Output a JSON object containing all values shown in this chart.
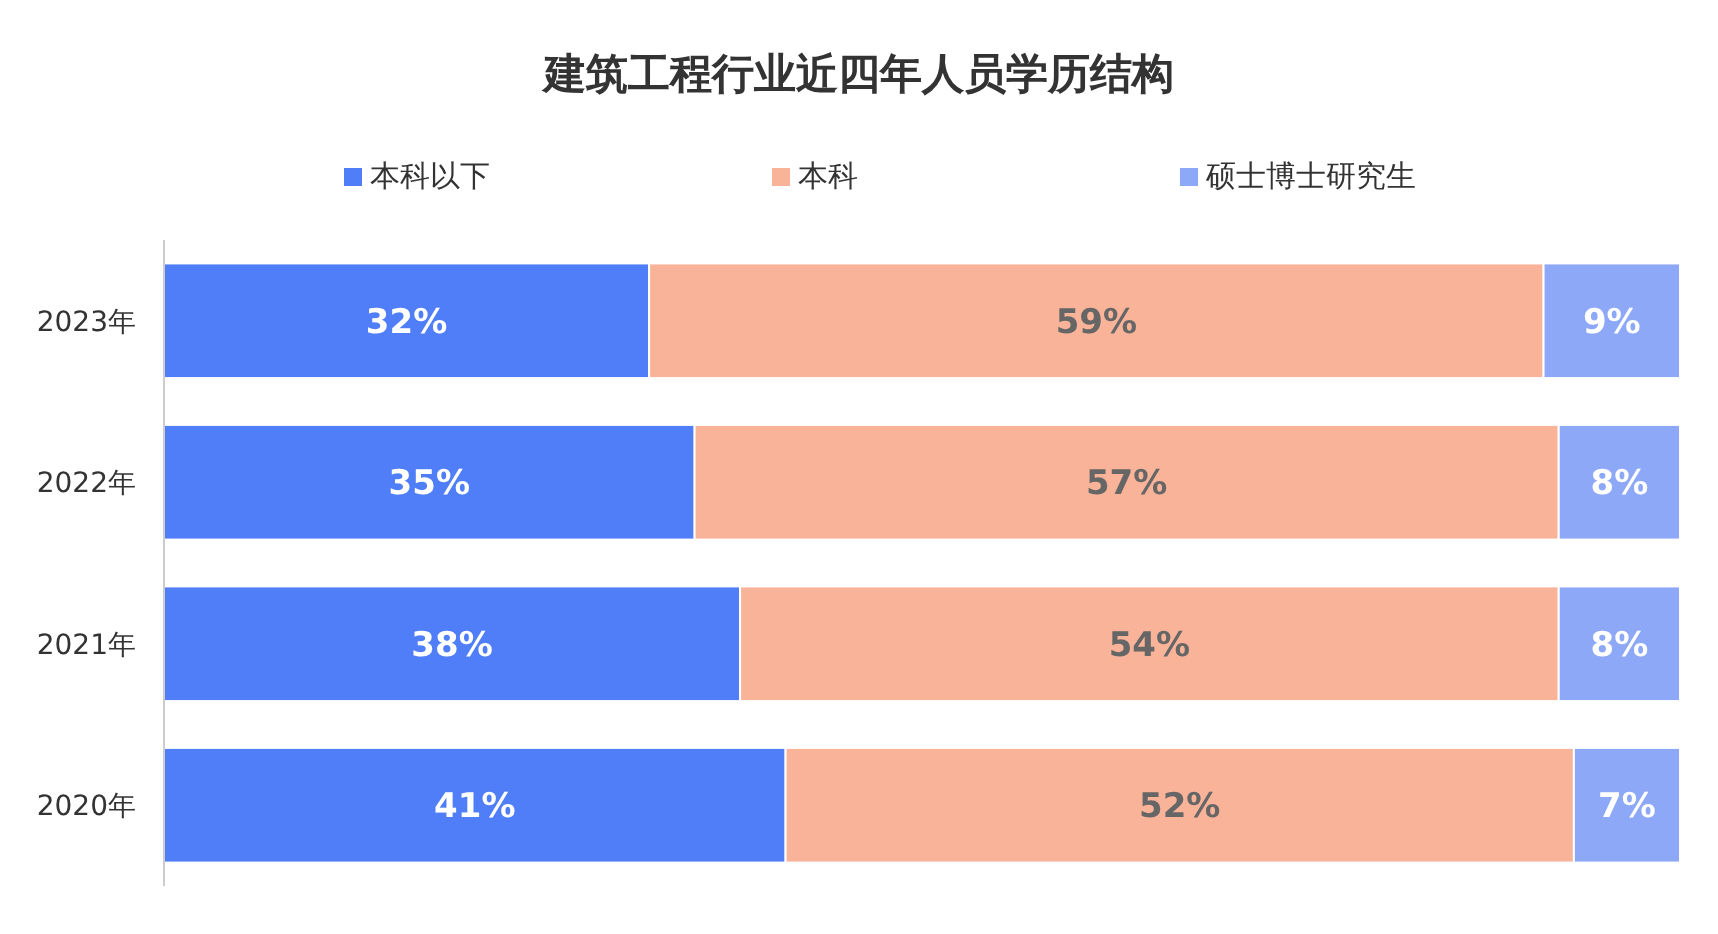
{
  "chart_data": {
    "type": "bar",
    "orientation": "horizontal",
    "stacked": true,
    "title": "建筑工程行业近四年人员学历结构",
    "categories": [
      "2023年",
      "2022年",
      "2021年",
      "2020年"
    ],
    "legend": "top",
    "series": [
      {
        "name": "本科以下",
        "color": "#4f7ef8",
        "values": [
          32,
          35,
          38,
          41
        ],
        "value_labels": [
          "32%",
          "35%",
          "38%",
          "41%"
        ]
      },
      {
        "name": "本科",
        "color": "#f8b399",
        "values": [
          59,
          57,
          54,
          52
        ],
        "value_labels": [
          "59%",
          "57%",
          "54%",
          "52%"
        ]
      },
      {
        "name": "硕士博士研究生",
        "color": "#8ea8f8",
        "values": [
          9,
          8,
          8,
          7
        ],
        "value_labels": [
          "9%",
          "8%",
          "8%",
          "7%"
        ]
      }
    ]
  }
}
